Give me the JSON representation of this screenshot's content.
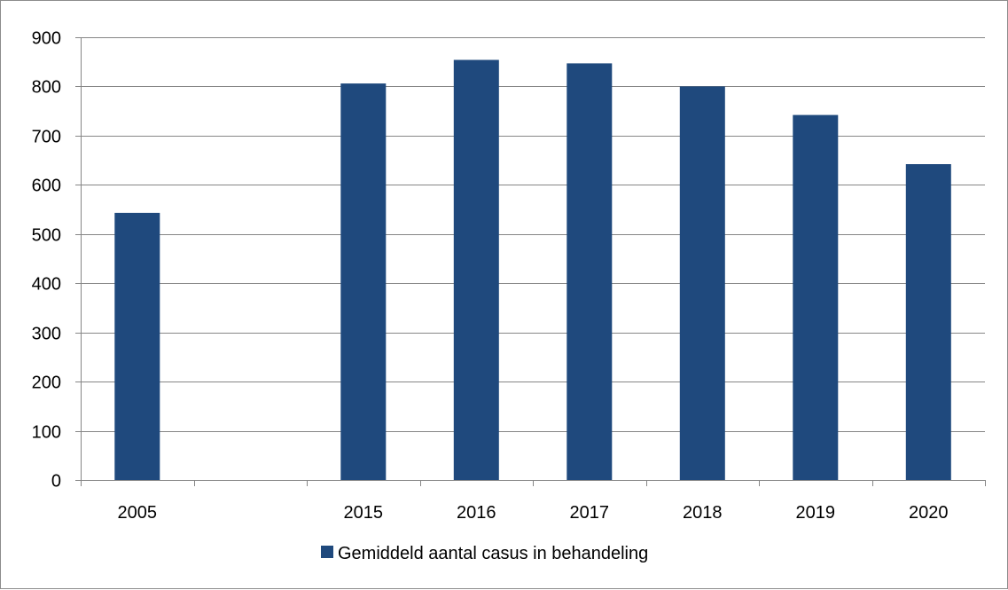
{
  "chart_data": {
    "type": "bar",
    "title": "",
    "xlabel": "",
    "ylabel": "",
    "categories": [
      "2005",
      "",
      "2015",
      "2016",
      "2017",
      "2018",
      "2019",
      "2020"
    ],
    "series": [
      {
        "name": "Gemiddeld aantal casus in behandeling",
        "color": "#1f497d",
        "values": [
          543,
          null,
          806,
          854,
          847,
          800,
          742,
          642
        ]
      }
    ],
    "ylim": [
      0,
      900
    ],
    "yticks": [
      0,
      100,
      200,
      300,
      400,
      500,
      600,
      700,
      800,
      900
    ],
    "grid": true,
    "legend": "bottom",
    "colors": {
      "bar": "#1f497d",
      "grid": "#868686",
      "axis": "#868686"
    }
  }
}
